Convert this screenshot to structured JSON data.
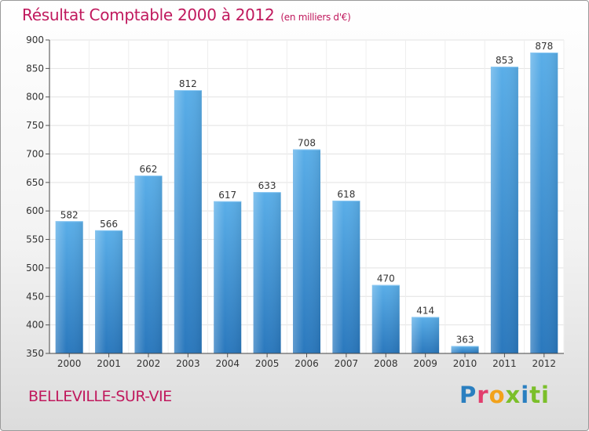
{
  "chart_data": {
    "type": "bar",
    "title": "Résultat Comptable 2000 à 2012",
    "subtitle": "(en milliers d'€)",
    "categories": [
      "2000",
      "2001",
      "2002",
      "2003",
      "2004",
      "2005",
      "2006",
      "2007",
      "2008",
      "2009",
      "2010",
      "2011",
      "2012"
    ],
    "values": [
      582,
      566,
      662,
      812,
      617,
      633,
      708,
      618,
      470,
      414,
      363,
      853,
      878
    ],
    "ylim": [
      350,
      900
    ],
    "yticks": [
      350,
      400,
      450,
      500,
      550,
      600,
      650,
      700,
      750,
      800,
      850,
      900
    ],
    "grid": true,
    "bar_color": "#3a8fd4"
  },
  "location": "BELLEVILLE-SUR-VIE",
  "logo": {
    "text": "Proxiti",
    "letters": [
      "P",
      "r",
      "o",
      "x",
      "i",
      "ti"
    ]
  }
}
